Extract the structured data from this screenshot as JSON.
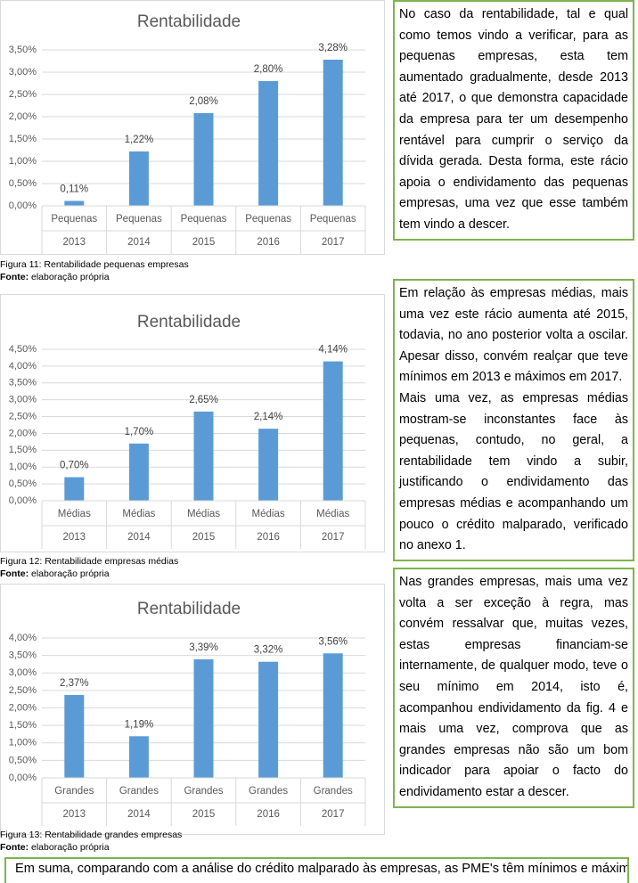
{
  "chart_data": [
    {
      "type": "bar",
      "title": "Rentabilidade",
      "categories": [
        "Pequenas",
        "Pequenas",
        "Pequenas",
        "Pequenas",
        "Pequenas"
      ],
      "years": [
        "2013",
        "2014",
        "2015",
        "2016",
        "2017"
      ],
      "values": [
        0.11,
        1.22,
        2.08,
        2.8,
        3.28
      ],
      "value_labels": [
        "0,11%",
        "1,22%",
        "2,08%",
        "2,80%",
        "3,28%"
      ],
      "color": "#5b9bd5",
      "ylim": [
        0,
        3.5
      ],
      "yticks": [
        {
          "value": 0,
          "label": "0,00%"
        },
        {
          "value": 0.5,
          "label": "0,50%"
        },
        {
          "value": 1,
          "label": "1,00%"
        },
        {
          "value": 1.5,
          "label": "1,50%"
        },
        {
          "value": 2,
          "label": "2,00%"
        },
        {
          "value": 2.5,
          "label": "2,50%"
        },
        {
          "value": 3,
          "label": "3,00%"
        },
        {
          "value": 3.5,
          "label": "3,50%"
        }
      ],
      "grid": true
    },
    {
      "type": "bar",
      "title": "Rentabilidade",
      "categories": [
        "Médias",
        "Médias",
        "Médias",
        "Médias",
        "Médias"
      ],
      "years": [
        "2013",
        "2014",
        "2015",
        "2016",
        "2017"
      ],
      "values": [
        0.7,
        1.7,
        2.65,
        2.14,
        4.14
      ],
      "value_labels": [
        "0,70%",
        "1,70%",
        "2,65%",
        "2,14%",
        "4,14%"
      ],
      "color": "#5b9bd5",
      "ylim": [
        0,
        4.5
      ],
      "yticks": [
        {
          "value": 0,
          "label": "0,00%"
        },
        {
          "value": 0.5,
          "label": "0,50%"
        },
        {
          "value": 1,
          "label": "1,00%"
        },
        {
          "value": 1.5,
          "label": "1,50%"
        },
        {
          "value": 2,
          "label": "2,00%"
        },
        {
          "value": 2.5,
          "label": "2,50%"
        },
        {
          "value": 3,
          "label": "3,00%"
        },
        {
          "value": 3.5,
          "label": "3,50%"
        },
        {
          "value": 4,
          "label": "4,00%"
        },
        {
          "value": 4.5,
          "label": "4,50%"
        }
      ],
      "grid": true
    },
    {
      "type": "bar",
      "title": "Rentabilidade",
      "categories": [
        "Grandes",
        "Grandes",
        "Grandes",
        "Grandes",
        "Grandes"
      ],
      "years": [
        "2013",
        "2014",
        "2015",
        "2016",
        "2017"
      ],
      "values": [
        2.37,
        1.19,
        3.39,
        3.32,
        3.56
      ],
      "value_labels": [
        "2,37%",
        "1,19%",
        "3,39%",
        "3,32%",
        "3,56%"
      ],
      "color": "#5b9bd5",
      "ylim": [
        0,
        4
      ],
      "yticks": [
        {
          "value": 0,
          "label": "0,00%"
        },
        {
          "value": 0.5,
          "label": "0,50%"
        },
        {
          "value": 1,
          "label": "1,00%"
        },
        {
          "value": 1.5,
          "label": "1,50%"
        },
        {
          "value": 2,
          "label": "2,00%"
        },
        {
          "value": 2.5,
          "label": "2,50%"
        },
        {
          "value": 3,
          "label": "3,00%"
        },
        {
          "value": 3.5,
          "label": "3,50%"
        },
        {
          "value": 4,
          "label": "4,00%"
        }
      ],
      "grid": true
    }
  ],
  "figures": [
    {
      "caption": "Figura 11: Rentabilidade pequenas empresas",
      "source_label": "Fonte:",
      "source": "elaboração própria"
    },
    {
      "caption": "Figura 12: Rentabilidade empresas médias",
      "source_label": "Fonte:",
      "source": "elaboração própria"
    },
    {
      "caption": "Figura 13: Rentabilidade grandes empresas",
      "source_label": "Fonte:",
      "source": "elaboração própria"
    }
  ],
  "text_boxes": [
    {
      "paragraphs": [
        "No caso da rentabilidade, tal e qual como temos vindo a verificar, para as pequenas empresas, esta tem aumentado gradualmente, desde 2013 até 2017, o que demonstra capacidade da empresa para ter um desempenho rentável para cumprir o serviço da dívida gerada. Desta forma, este rácio apoia o endividamento das pequenas empresas, uma vez que esse também tem vindo a descer."
      ]
    },
    {
      "paragraphs": [
        "Em relação às empresas médias, mais uma vez este rácio aumenta até 2015, todavia, no ano posterior volta a oscilar. Apesar disso, convém realçar que teve mínimos em 2013 e máximos em 2017.",
        "Mais uma vez, as empresas médias mostram-se inconstantes face às pequenas, contudo, no geral, a rentabilidade tem vindo a subir, justificando o endividamento das empresas médias e acompanhando um pouco o crédito malparado, verificado no anexo 1."
      ]
    },
    {
      "paragraphs": [
        "Nas grandes empresas, mais uma vez volta a ser exceção à regra, mas convém ressalvar que, muitas vezes, estas empresas financiam-se internamente, de qualquer modo, teve o seu mínimo em 2014, isto é, acompanhou endividamento da fig. 4 e mais uma vez, comprova que as grandes empresas não são um bom indicador para apoiar o facto do endividamento estar a descer."
      ]
    }
  ],
  "bottom_box": "Em suma, comparando com a análise do crédito malparado às empresas, as PME's têm mínimos e máximos"
}
